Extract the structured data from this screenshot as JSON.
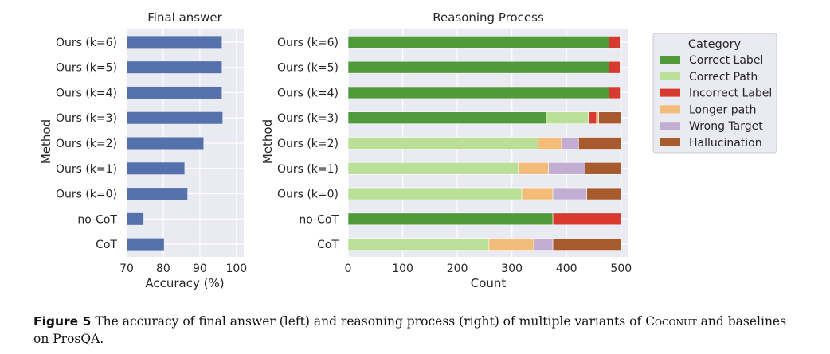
{
  "chart_data": [
    {
      "type": "bar",
      "orientation": "horizontal",
      "title": "Final answer",
      "xlabel": "Accuracy (%)",
      "ylabel": "Method",
      "categories": [
        "Ours (k=6)",
        "Ours (k=5)",
        "Ours (k=4)",
        "Ours (k=3)",
        "Ours (k=2)",
        "Ours (k=1)",
        "Ours (k=0)",
        "no-CoT",
        "CoT"
      ],
      "values": [
        96.0,
        96.0,
        96.0,
        96.2,
        91.0,
        85.8,
        86.6,
        74.6,
        80.2
      ],
      "xlim": [
        70,
        102
      ],
      "xticks": [
        70,
        80,
        90,
        100
      ],
      "grid": true,
      "bar_color": "#5471ab"
    },
    {
      "type": "bar",
      "orientation": "horizontal",
      "stacked": true,
      "title": "Reasoning Process",
      "xlabel": "Count",
      "ylabel": "Method",
      "categories": [
        "Ours (k=6)",
        "Ours (k=5)",
        "Ours (k=4)",
        "Ours (k=3)",
        "Ours (k=2)",
        "Ours (k=1)",
        "Ours (k=0)",
        "no-CoT",
        "CoT"
      ],
      "xlim": [
        0,
        512
      ],
      "xticks": [
        0,
        100,
        200,
        300,
        400,
        500
      ],
      "grid": true,
      "legend_title": "Category",
      "legend_position": "upper-right, outside plot",
      "series": [
        {
          "name": "Correct Label",
          "color": "#4f9b3c",
          "values": [
            478,
            478,
            478,
            363,
            0,
            0,
            0,
            375,
            0
          ]
        },
        {
          "name": "Correct Path",
          "color": "#badf97",
          "values": [
            0,
            0,
            0,
            77,
            348,
            312,
            318,
            0,
            258
          ]
        },
        {
          "name": "Incorrect Label",
          "color": "#d73a2f",
          "values": [
            20,
            20,
            20,
            15,
            0,
            0,
            0,
            125,
            0
          ]
        },
        {
          "name": "Longer path",
          "color": "#f3bd79",
          "values": [
            2,
            2,
            0,
            4,
            43,
            55,
            57,
            0,
            82
          ]
        },
        {
          "name": "Wrong Target",
          "color": "#c2aed3",
          "values": [
            0,
            0,
            0,
            0,
            31,
            67,
            62,
            0,
            35
          ]
        },
        {
          "name": "Hallucination",
          "color": "#a65a2d",
          "values": [
            0,
            0,
            2,
            41,
            78,
            66,
            63,
            0,
            125
          ]
        }
      ]
    }
  ],
  "caption": {
    "label": "Figure 5",
    "text_before": "The accuracy of final answer (left) and reasoning process (right) of multiple variants of",
    "coconut": "Coconut",
    "text_after": "and baselines on ProsQA."
  }
}
